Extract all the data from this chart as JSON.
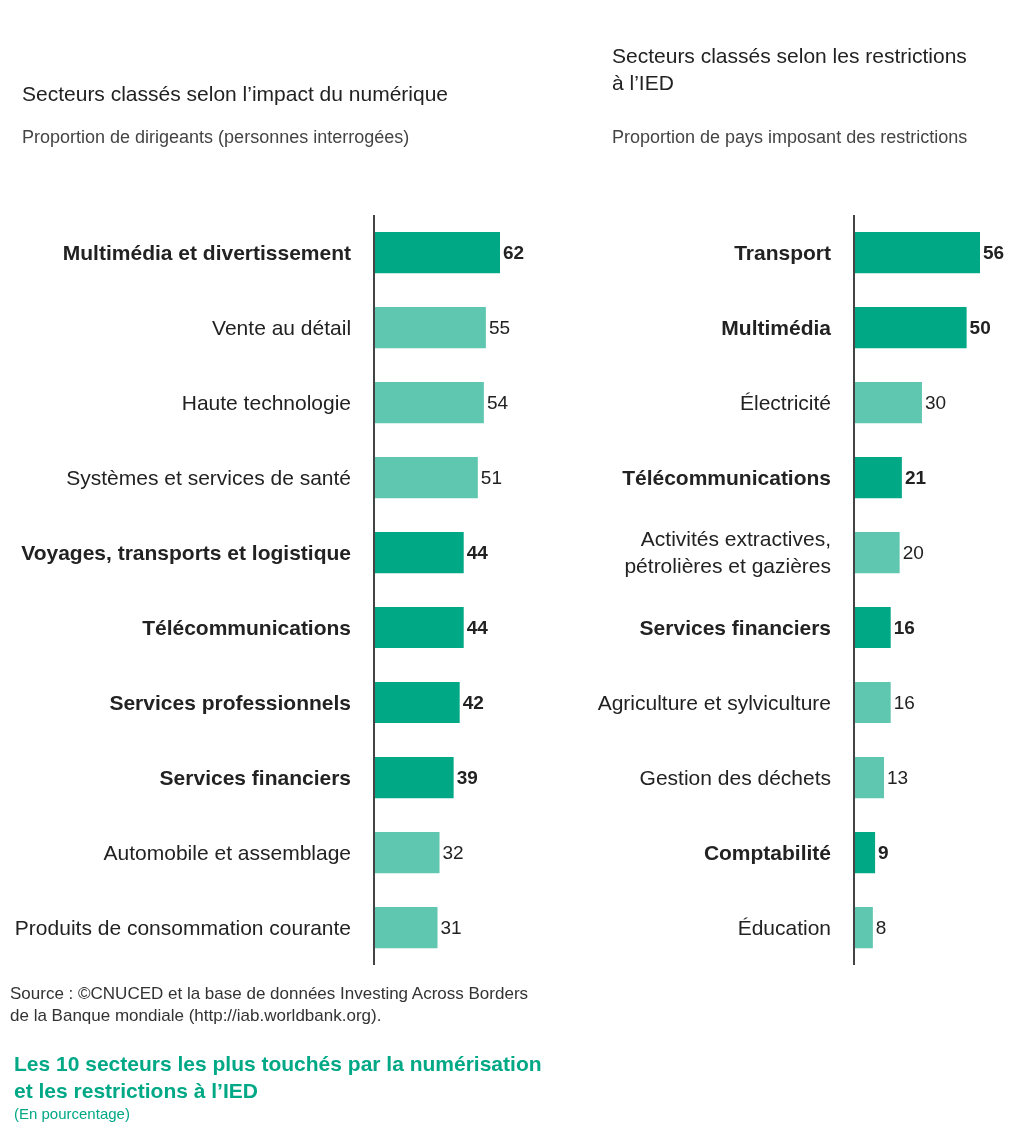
{
  "chart_data": [
    {
      "type": "bar",
      "orientation": "horizontal",
      "title": "Secteurs classés selon l’impact du numérique",
      "subtitle": "Proportion de dirigeants (personnes interrogées)",
      "categories": [
        "Multimédia et divertissement",
        "Vente au détail",
        "Haute technologie",
        "Systèmes et services de santé",
        "Voyages, transports et logistique",
        "Télécommunications",
        "Services professionnels",
        "Services financiers",
        "Automobile et assemblage",
        "Produits de consommation courante"
      ],
      "values": [
        62,
        55,
        54,
        51,
        44,
        44,
        42,
        39,
        32,
        31
      ],
      "colors": [
        "#00a886",
        "#5fc6b0",
        "#5fc6b0",
        "#5fc6b0",
        "#00a886",
        "#00a886",
        "#00a886",
        "#00a886",
        "#5fc6b0",
        "#5fc6b0"
      ],
      "data_labels": true
    },
    {
      "type": "bar",
      "orientation": "horizontal",
      "title": "Secteurs classés selon les restrictions\nà l’IED",
      "subtitle": "Proportion de pays imposant des restrictions",
      "categories": [
        "Transport",
        "Multimédia",
        "Électricité",
        "Télécommunications",
        "Activités extractives,\npétrolières et gazières",
        "Services financiers",
        "Agriculture et sylviculture",
        "Gestion des déchets",
        "Comptabilité",
        "Éducation"
      ],
      "values": [
        56,
        50,
        30,
        21,
        20,
        16,
        16,
        13,
        9,
        8
      ],
      "colors": [
        "#00a886",
        "#00a886",
        "#5fc6b0",
        "#00a886",
        "#5fc6b0",
        "#00a886",
        "#5fc6b0",
        "#5fc6b0",
        "#00a886",
        "#5fc6b0"
      ],
      "data_labels": true,
      "annotations": [
        "Source : ©CNUCED et la base de données Investing Across Borders de la Banque mondiale (http://iab.worldbank.org).",
        "Les 10 secteurs les plus touchés par la numérisation\net les restrictions à l’IED",
        "(En pourcentage)"
      ]
    }
  ]
}
